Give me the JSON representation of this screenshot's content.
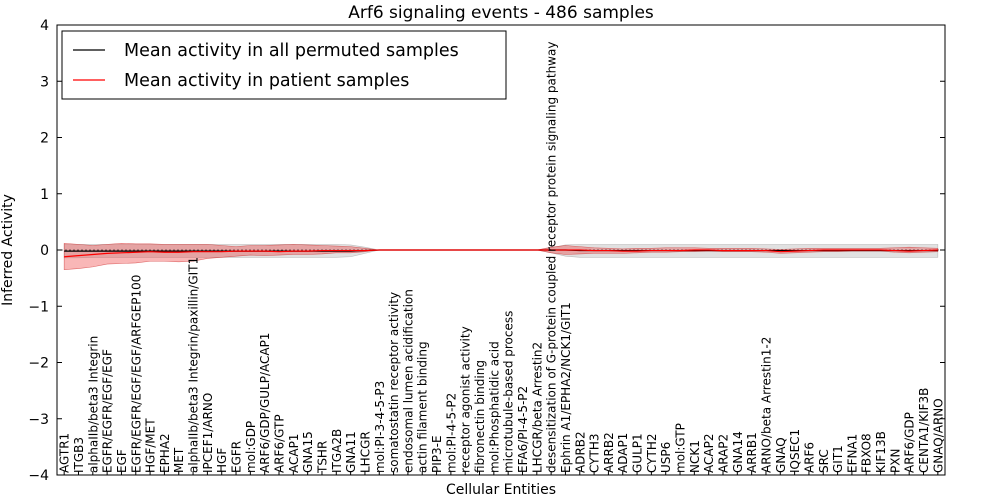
{
  "chart_data": {
    "type": "line",
    "title": "Arf6 signaling events - 486 samples",
    "xlabel": "Cellular Entities",
    "ylabel": "Inferred Activity",
    "ylim": [
      -4,
      4
    ],
    "yticks": [
      -4,
      -3,
      -2,
      -1,
      0,
      1,
      2,
      3,
      4
    ],
    "ytick_labels": [
      "−4",
      "−3",
      "−2",
      "−1",
      "0",
      "1",
      "2",
      "3",
      "4"
    ],
    "legend_position": "top-left",
    "categories": [
      "AGTR1",
      "ITGB3",
      "alphaIIb/beta3 Integrin",
      "EGFR/EGFR/EGF/EGF",
      "EGF",
      "EGFR/EGFR/EGF/EGF/ARFGEP100",
      "HGF/MET",
      "EPHA2",
      "MET",
      "alphaIIb/beta3 Integrin/paxillin/GIT1",
      "IPCEF1/ARNO",
      "HGF",
      "EGFR",
      "mol:GDP",
      "ARF6/GDP/GULP/ACAP1",
      "ARF6/GTP",
      "ACAP1",
      "GNA15",
      "TSHR",
      "ITGA2B",
      "GNA11",
      "LHCGR",
      "mol:PI-3-4-5-P3",
      "somatostatin receptor activity",
      "endosomal lumen acidification",
      "actin filament binding",
      "PIP3-E",
      "mol:PI-4-5-P2",
      "receptor agonist activity",
      "fibronectin binding",
      "mol:Phosphatidic acid",
      "microtubule-based process",
      "EFA6/PI-4-5-P2",
      "LHCGR/beta Arrestin2",
      "desensitization of G-protein coupled receptor protein signaling pathway",
      "Ephrin A1/EPHA2/NCK1/GIT1",
      "ADRB2",
      "CYTH3",
      "ARRB2",
      "ADAP1",
      "GULP1",
      "CYTH2",
      "USP6",
      "mol:GTP",
      "NCK1",
      "ACAP2",
      "ARAP2",
      "GNA14",
      "ARRB1",
      "ARNO/beta Arrestin1-2",
      "GNAQ",
      "IQSEC1",
      "ARF6",
      "SRC",
      "GIT1",
      "EFNA1",
      "FBXO8",
      "KIF13B",
      "PXN",
      "ARF6/GDP",
      "CENTA1/KIF3B",
      "GNAQ/ARNO"
    ],
    "series": [
      {
        "name": "Mean activity in all permuted samples",
        "color": "#000000",
        "values": [
          -0.02,
          -0.02,
          -0.02,
          -0.02,
          -0.02,
          -0.02,
          -0.02,
          -0.02,
          -0.02,
          -0.02,
          -0.02,
          -0.02,
          -0.02,
          -0.02,
          -0.02,
          -0.02,
          -0.02,
          -0.02,
          -0.02,
          -0.02,
          -0.02,
          -0.01,
          0,
          0,
          0,
          0,
          0,
          0,
          0,
          0,
          0,
          0,
          0,
          0,
          0,
          0,
          -0.01,
          -0.01,
          -0.01,
          -0.01,
          -0.01,
          -0.01,
          -0.01,
          -0.01,
          -0.01,
          -0.01,
          -0.01,
          -0.01,
          -0.01,
          -0.01,
          -0.01,
          -0.01,
          -0.01,
          -0.01,
          -0.01,
          -0.01,
          -0.01,
          -0.01,
          -0.01,
          -0.01,
          -0.01,
          -0.01
        ],
        "band_low": [
          -0.14,
          -0.14,
          -0.13,
          -0.13,
          -0.13,
          -0.13,
          -0.13,
          -0.13,
          -0.13,
          -0.13,
          -0.13,
          -0.13,
          -0.13,
          -0.13,
          -0.13,
          -0.13,
          -0.13,
          -0.13,
          -0.13,
          -0.13,
          -0.12,
          -0.06,
          0,
          0,
          0,
          0,
          0,
          0,
          0,
          0,
          0,
          0,
          0,
          0,
          -0.05,
          -0.11,
          -0.13,
          -0.13,
          -0.13,
          -0.13,
          -0.13,
          -0.13,
          -0.13,
          -0.13,
          -0.13,
          -0.13,
          -0.13,
          -0.13,
          -0.13,
          -0.13,
          -0.13,
          -0.13,
          -0.13,
          -0.13,
          -0.13,
          -0.13,
          -0.13,
          -0.13,
          -0.13,
          -0.13,
          -0.13,
          -0.13
        ],
        "band_high": [
          0.1,
          0.1,
          0.1,
          0.1,
          0.1,
          0.1,
          0.1,
          0.1,
          0.1,
          0.1,
          0.1,
          0.1,
          0.1,
          0.1,
          0.1,
          0.1,
          0.1,
          0.1,
          0.1,
          0.1,
          0.09,
          0.05,
          0,
          0,
          0,
          0,
          0,
          0,
          0,
          0,
          0,
          0,
          0,
          0,
          0.04,
          0.09,
          0.1,
          0.1,
          0.1,
          0.1,
          0.1,
          0.1,
          0.1,
          0.1,
          0.1,
          0.1,
          0.1,
          0.1,
          0.1,
          0.1,
          0.1,
          0.1,
          0.1,
          0.1,
          0.1,
          0.1,
          0.1,
          0.1,
          0.1,
          0.1,
          0.1,
          0.1
        ]
      },
      {
        "name": "Mean activity in patient samples",
        "color": "#ff0000",
        "values": [
          -0.12,
          -0.1,
          -0.08,
          -0.06,
          -0.05,
          -0.04,
          -0.03,
          -0.04,
          -0.04,
          -0.03,
          -0.03,
          -0.03,
          -0.02,
          -0.02,
          -0.02,
          -0.03,
          -0.02,
          -0.02,
          -0.01,
          -0.01,
          -0.01,
          -0.01,
          0,
          0,
          0,
          0,
          0,
          0,
          0,
          0,
          0,
          0,
          0,
          0,
          0,
          0,
          0,
          -0.01,
          -0.01,
          -0.02,
          -0.02,
          -0.01,
          -0.01,
          -0.01,
          0,
          0,
          -0.01,
          -0.01,
          -0.01,
          -0.01,
          -0.03,
          -0.02,
          -0.01,
          0,
          0,
          0,
          0,
          0,
          -0.01,
          -0.02,
          -0.01,
          0
        ],
        "band_low": [
          -0.35,
          -0.33,
          -0.3,
          -0.25,
          -0.24,
          -0.23,
          -0.2,
          -0.2,
          -0.21,
          -0.2,
          -0.15,
          -0.13,
          -0.11,
          -0.09,
          -0.1,
          -0.09,
          -0.08,
          -0.08,
          -0.07,
          -0.05,
          -0.05,
          -0.03,
          0,
          0,
          0,
          0,
          0,
          0,
          0,
          0,
          0,
          0,
          0,
          0,
          -0.05,
          -0.08,
          -0.07,
          -0.06,
          -0.06,
          -0.06,
          -0.05,
          -0.04,
          -0.04,
          -0.03,
          -0.03,
          -0.02,
          -0.03,
          -0.03,
          -0.03,
          -0.04,
          -0.06,
          -0.05,
          -0.04,
          -0.03,
          -0.03,
          -0.02,
          -0.02,
          -0.02,
          -0.04,
          -0.05,
          -0.04,
          -0.03
        ],
        "band_high": [
          0.12,
          0.1,
          0.08,
          0.1,
          0.12,
          0.11,
          0.11,
          0.1,
          0.1,
          0.1,
          0.1,
          0.08,
          0.06,
          0.08,
          0.08,
          0.09,
          0.1,
          0.09,
          0.08,
          0.07,
          0.06,
          0.03,
          0,
          0,
          0,
          0,
          0,
          0,
          0,
          0,
          0,
          0,
          0,
          0,
          0.05,
          0.08,
          0.06,
          0.04,
          0.03,
          0.02,
          0.03,
          0.03,
          0.04,
          0.04,
          0.04,
          0.03,
          0.03,
          0.03,
          0.03,
          0.02,
          0.01,
          0.02,
          0.03,
          0.03,
          0.03,
          0.03,
          0.03,
          0.03,
          0.04,
          0.05,
          0.04,
          0.03
        ]
      }
    ]
  }
}
